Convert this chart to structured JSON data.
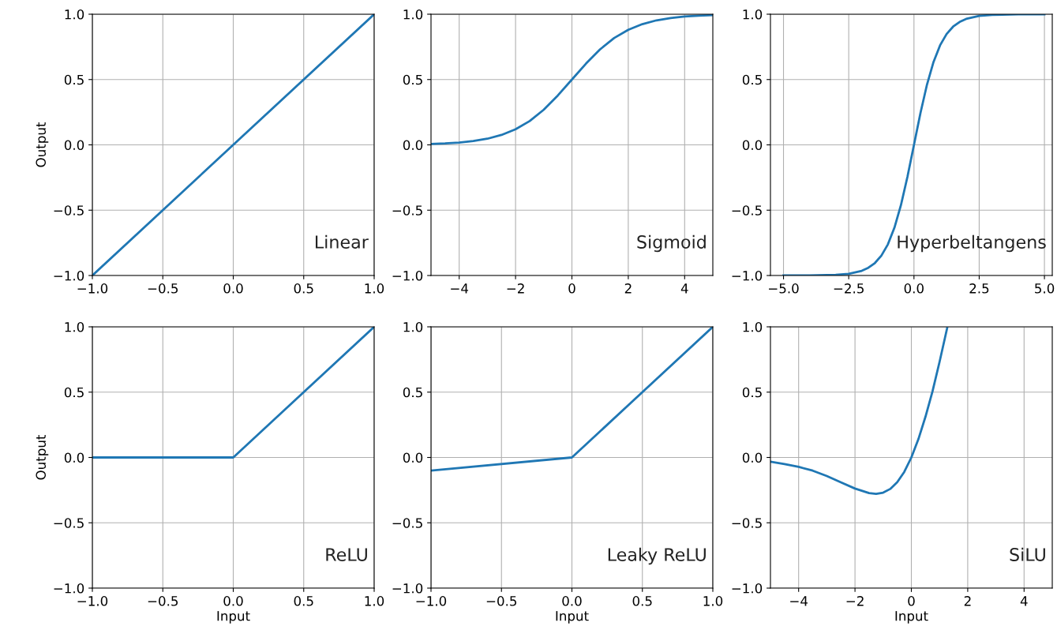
{
  "chart_data": [
    {
      "type": "line",
      "annotations": [
        "Linear"
      ],
      "ylabel": "Output",
      "x": [
        -1,
        1
      ],
      "series": [
        {
          "color": "#1f77b4",
          "values": [
            -1,
            1
          ]
        }
      ],
      "xlim": [
        -1,
        1
      ],
      "ylim": [
        -1,
        1
      ],
      "xticks": [
        {
          "value": -1,
          "label": "−1.0"
        },
        {
          "value": -0.5,
          "label": "−0.5"
        },
        {
          "value": 0,
          "label": "0.0"
        },
        {
          "value": 0.5,
          "label": "0.5"
        },
        {
          "value": 1,
          "label": "1.0"
        }
      ],
      "yticks": [
        {
          "value": -1,
          "label": "−1.0"
        },
        {
          "value": -0.5,
          "label": "−0.5"
        },
        {
          "value": 0,
          "label": "0.0"
        },
        {
          "value": 0.5,
          "label": "0.5"
        },
        {
          "value": 1,
          "label": "1.0"
        }
      ],
      "grid": true
    },
    {
      "type": "line",
      "annotations": [
        "Sigmoid"
      ],
      "x": [
        -5,
        -4.5,
        -4,
        -3.5,
        -3,
        -2.5,
        -2,
        -1.5,
        -1,
        -0.5,
        0,
        0.5,
        1,
        1.5,
        2,
        2.5,
        3,
        3.5,
        4,
        4.5,
        5
      ],
      "series": [
        {
          "color": "#1f77b4",
          "values": [
            0.007,
            0.011,
            0.018,
            0.029,
            0.047,
            0.076,
            0.119,
            0.182,
            0.269,
            0.378,
            0.5,
            0.622,
            0.731,
            0.818,
            0.881,
            0.924,
            0.953,
            0.971,
            0.982,
            0.989,
            0.993
          ]
        }
      ],
      "xlim": [
        -5,
        5
      ],
      "ylim": [
        -1,
        1
      ],
      "xticks": [
        {
          "value": -4,
          "label": "−4"
        },
        {
          "value": -2,
          "label": "−2"
        },
        0,
        2,
        4
      ],
      "yticks": [
        {
          "value": -1,
          "label": "−1.0"
        },
        {
          "value": -0.5,
          "label": "−0.5"
        },
        {
          "value": 0,
          "label": "0.0"
        },
        {
          "value": 0.5,
          "label": "0.5"
        },
        {
          "value": 1,
          "label": "1.0"
        }
      ],
      "grid": true
    },
    {
      "type": "line",
      "annotations": [
        "Hyperbeltangens"
      ],
      "x": [
        -5,
        -4,
        -3,
        -2.5,
        -2,
        -1.75,
        -1.5,
        -1.25,
        -1,
        -0.75,
        -0.5,
        -0.25,
        0,
        0.25,
        0.5,
        0.75,
        1,
        1.25,
        1.5,
        1.75,
        2,
        2.5,
        3,
        4,
        5
      ],
      "series": [
        {
          "color": "#1f77b4",
          "values": [
            -1.0,
            -0.999,
            -0.995,
            -0.987,
            -0.964,
            -0.941,
            -0.905,
            -0.848,
            -0.762,
            -0.635,
            -0.462,
            -0.245,
            0,
            0.245,
            0.462,
            0.635,
            0.762,
            0.848,
            0.905,
            0.941,
            0.964,
            0.987,
            0.995,
            0.999,
            1.0
          ]
        }
      ],
      "xlim": [
        -5.5,
        5.3
      ],
      "ylim": [
        -1,
        1
      ],
      "xticks": [
        {
          "value": -5,
          "label": "−5.0"
        },
        {
          "value": -2.5,
          "label": "−2.5"
        },
        {
          "value": 0,
          "label": "0.0"
        },
        {
          "value": 2.5,
          "label": "2.5"
        },
        {
          "value": 5,
          "label": "5.0"
        }
      ],
      "yticks": [
        {
          "value": -1,
          "label": "−1.0"
        },
        {
          "value": -0.5,
          "label": "−0.5"
        },
        {
          "value": 0,
          "label": "0.0"
        },
        {
          "value": 0.5,
          "label": "0.5"
        },
        {
          "value": 1,
          "label": "1.0"
        }
      ],
      "grid": true
    },
    {
      "type": "line",
      "annotations": [
        "ReLU"
      ],
      "ylabel": "Output",
      "xlabel": "Input",
      "x": [
        -1,
        0,
        1
      ],
      "series": [
        {
          "color": "#1f77b4",
          "values": [
            0,
            0,
            1
          ]
        }
      ],
      "xlim": [
        -1,
        1
      ],
      "ylim": [
        -1,
        1
      ],
      "xticks": [
        {
          "value": -1,
          "label": "−1.0"
        },
        {
          "value": -0.5,
          "label": "−0.5"
        },
        {
          "value": 0,
          "label": "0.0"
        },
        {
          "value": 0.5,
          "label": "0.5"
        },
        {
          "value": 1,
          "label": "1.0"
        }
      ],
      "yticks": [
        {
          "value": -1,
          "label": "−1.0"
        },
        {
          "value": -0.5,
          "label": "−0.5"
        },
        {
          "value": 0,
          "label": "0.0"
        },
        {
          "value": 0.5,
          "label": "0.5"
        },
        {
          "value": 1,
          "label": "1.0"
        }
      ],
      "grid": true
    },
    {
      "type": "line",
      "annotations": [
        "Leaky ReLU"
      ],
      "xlabel": "Input",
      "x": [
        -1,
        0,
        1
      ],
      "series": [
        {
          "color": "#1f77b4",
          "values": [
            -0.1,
            0,
            1
          ]
        }
      ],
      "xlim": [
        -1,
        1
      ],
      "ylim": [
        -1,
        1
      ],
      "xticks": [
        {
          "value": -1,
          "label": "−1.0"
        },
        {
          "value": -0.5,
          "label": "−0.5"
        },
        {
          "value": 0,
          "label": "0.0"
        },
        {
          "value": 0.5,
          "label": "0.5"
        },
        {
          "value": 1,
          "label": "1.0"
        }
      ],
      "yticks": [
        {
          "value": -1,
          "label": "−1.0"
        },
        {
          "value": -0.5,
          "label": "−0.5"
        },
        {
          "value": 0,
          "label": "0.0"
        },
        {
          "value": 0.5,
          "label": "0.5"
        },
        {
          "value": 1,
          "label": "1.0"
        }
      ],
      "grid": true
    },
    {
      "type": "line",
      "annotations": [
        "SiLU"
      ],
      "xlabel": "Input",
      "x": [
        -5,
        -4.5,
        -4,
        -3.5,
        -3,
        -2.5,
        -2,
        -1.5,
        -1.25,
        -1,
        -0.75,
        -0.5,
        -0.25,
        0,
        0.25,
        0.5,
        0.75,
        1,
        1.27
      ],
      "series": [
        {
          "color": "#1f77b4",
          "values": [
            -0.033,
            -0.05,
            -0.072,
            -0.101,
            -0.142,
            -0.19,
            -0.238,
            -0.273,
            -0.278,
            -0.269,
            -0.241,
            -0.189,
            -0.11,
            0,
            0.14,
            0.311,
            0.505,
            0.731,
            0.99
          ]
        }
      ],
      "xlim": [
        -5,
        5
      ],
      "ylim": [
        -1,
        1
      ],
      "xticks": [
        {
          "value": -4,
          "label": "−4"
        },
        {
          "value": -2,
          "label": "−2"
        },
        0,
        2,
        4
      ],
      "yticks": [
        {
          "value": -1,
          "label": "−1.0"
        },
        {
          "value": -0.5,
          "label": "−0.5"
        },
        {
          "value": 0,
          "label": "0.0"
        },
        {
          "value": 0.5,
          "label": "0.5"
        },
        {
          "value": 1,
          "label": "1.0"
        }
      ],
      "grid": true
    }
  ]
}
